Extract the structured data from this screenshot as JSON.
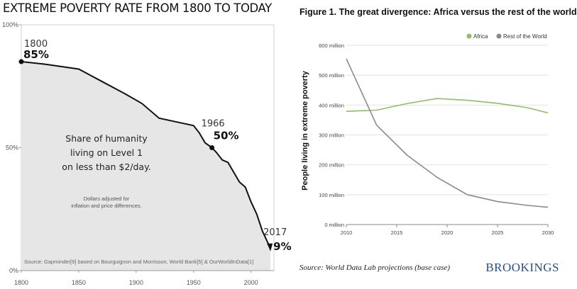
{
  "left": {
    "title": "EXTREME POVERTY RATE FROM 1800 TO TODAY",
    "annotations": [
      {
        "year": "1800",
        "value": "85%",
        "x": 1800,
        "y": 85
      },
      {
        "year": "1966",
        "value": "50%",
        "x": 1966,
        "y": 50
      },
      {
        "year": "2017",
        "value": "9%",
        "x": 2017,
        "y": 9
      }
    ],
    "center_text": [
      "Share of humanity",
      "living on Level 1",
      "on less than $2/day."
    ],
    "center_note": [
      "Dollars adjusted for",
      "inflation and price differences."
    ],
    "source": "Source: Gapminder[9] based on Bourguignon and Morrisson, World Bank[5] & OurWorldInData[1]"
  },
  "right": {
    "title": "Figure 1. The great divergence: Africa versus the rest of the world",
    "source": "Source: World Data Lab projections (base case)",
    "brand": "BROOKINGS"
  },
  "colors": {
    "left_fill": "#e6e6e6",
    "left_line": "#111111",
    "africa": "#8fbf63",
    "rest_of_world": "#8a8a8a"
  },
  "chart_data": [
    {
      "type": "area",
      "title": "EXTREME POVERTY RATE FROM 1800 TO TODAY",
      "xlabel": "",
      "ylabel": "",
      "xlim": [
        1800,
        2020
      ],
      "ylim": [
        0,
        100
      ],
      "x_ticks": [
        1800,
        1850,
        1900,
        1950,
        2000
      ],
      "y_ticks": [
        {
          "value": 0,
          "label": "0%"
        },
        {
          "value": 50,
          "label": "50%"
        },
        {
          "value": 100,
          "label": "100%"
        }
      ],
      "grid": false,
      "series": [
        {
          "name": "",
          "x": [
            1800,
            1820,
            1850,
            1870,
            1890,
            1905,
            1920,
            1930,
            1940,
            1950,
            1955,
            1960,
            1966,
            1970,
            1975,
            1980,
            1985,
            1990,
            1995,
            2000,
            2005,
            2010,
            2015,
            2017
          ],
          "y": [
            85,
            84,
            82,
            77,
            72,
            68,
            62,
            61,
            60,
            59,
            56,
            52,
            50,
            48,
            45,
            44,
            40,
            36,
            34,
            28,
            23,
            16,
            11,
            9
          ]
        }
      ]
    },
    {
      "type": "line",
      "title": "Figure 1. The great divergence: Africa versus the rest of the world",
      "xlabel": "",
      "ylabel": "People living in extreme poverty",
      "xlim": [
        2010,
        2030
      ],
      "ylim": [
        0,
        600
      ],
      "x_ticks": [
        2010,
        2015,
        2020,
        2025,
        2030
      ],
      "y_ticks": [
        {
          "value": 0,
          "label": "0 million"
        },
        {
          "value": 100,
          "label": "100 million"
        },
        {
          "value": 200,
          "label": "200 million"
        },
        {
          "value": 300,
          "label": "300 million"
        },
        {
          "value": 400,
          "label": "400 million"
        },
        {
          "value": 500,
          "label": "500 million"
        },
        {
          "value": 600,
          "label": "600 million"
        }
      ],
      "grid": true,
      "legend": "top-right",
      "series": [
        {
          "name": "Africa",
          "x": [
            2010,
            2013,
            2016,
            2019,
            2022,
            2025,
            2028,
            2030
          ],
          "y": [
            379,
            383,
            405,
            422,
            416,
            406,
            391,
            374
          ]
        },
        {
          "name": "Rest of the World",
          "x": [
            2010,
            2013,
            2016,
            2019,
            2022,
            2025,
            2028,
            2030
          ],
          "y": [
            555,
            333,
            233,
            158,
            100,
            77,
            64,
            58
          ]
        }
      ]
    }
  ]
}
